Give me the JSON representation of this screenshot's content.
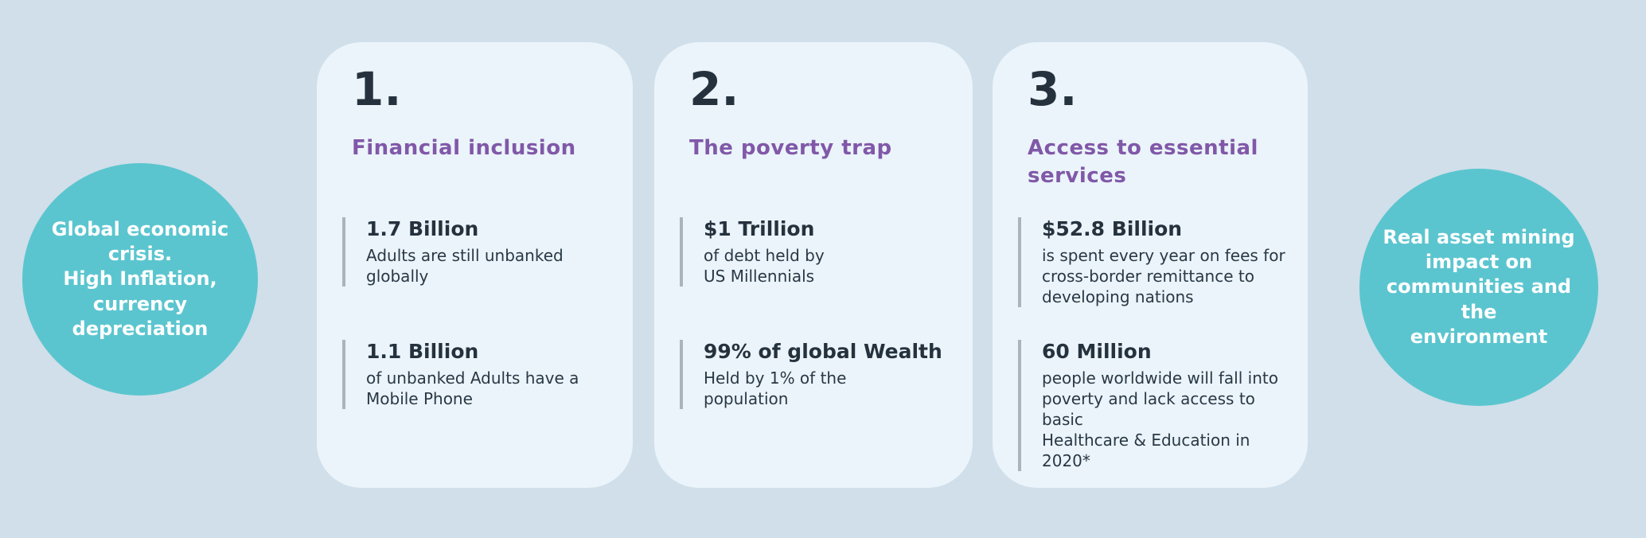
{
  "page": {
    "background_color": "#d0dfea",
    "card_color": "#eaf4fa",
    "circle_color": "#5bc5cf",
    "heading_color": "#8158a8",
    "text_color": "#25323e",
    "accent_bar_color": "#a9b4bb"
  },
  "left_circle": {
    "text": "Global economic\ncrisis.\nHigh Inflation,\ncurrency\ndepreciation"
  },
  "right_circle": {
    "text": "Real asset  mining\nimpact on\ncommunities and the\nenvironment"
  },
  "cards": [
    {
      "number": "1.",
      "title": "Financial inclusion",
      "stats": [
        {
          "value": "1.7 Billion",
          "description": "Adults are still unbanked\nglobally"
        },
        {
          "value": "1.1 Billion",
          "description": "of unbanked Adults have a\nMobile Phone"
        }
      ]
    },
    {
      "number": "2.",
      "title": "The poverty trap",
      "stats": [
        {
          "value": "$1 Trillion",
          "description": "of debt held by\nUS Millennials"
        },
        {
          "value": "99% of global Wealth",
          "description": "Held by 1% of the\npopulation"
        }
      ]
    },
    {
      "number": "3.",
      "title": "Access to essential services",
      "stats": [
        {
          "value": "$52.8 Billion",
          "description": "is spent every year on fees for\ncross-border remittance to\ndeveloping nations"
        },
        {
          "value": "60 Million",
          "description": "people worldwide will fall into\npoverty and lack access to basic\nHealthcare & Education in 2020*"
        }
      ]
    }
  ]
}
